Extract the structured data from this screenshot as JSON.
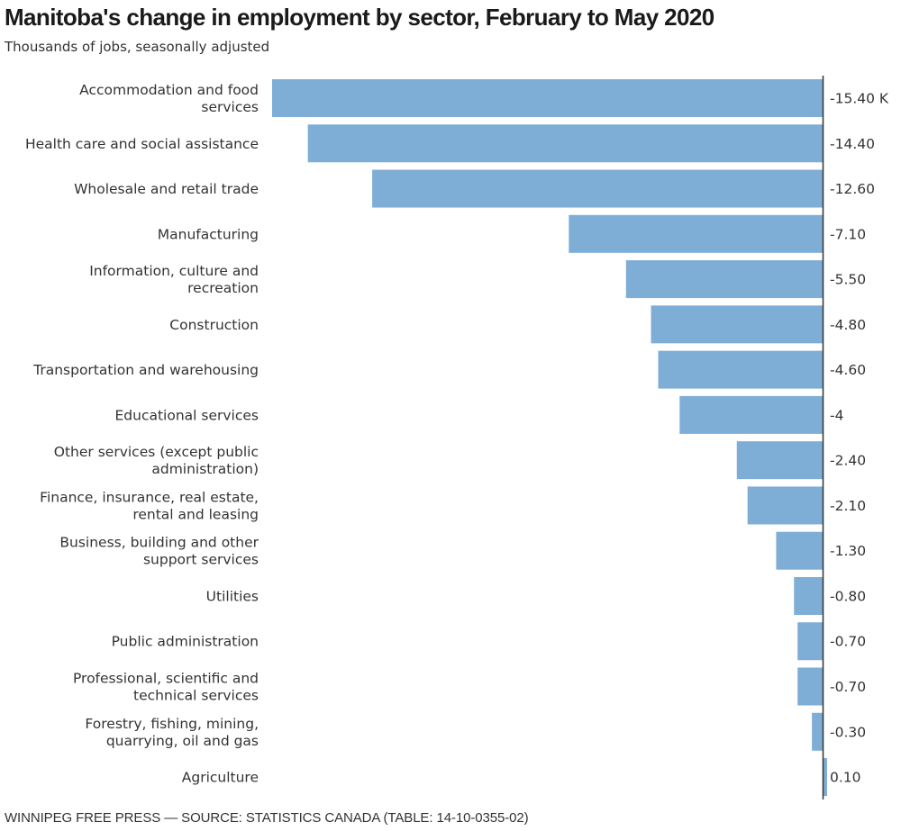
{
  "chart_data": {
    "type": "bar",
    "orientation": "horizontal",
    "title": "Manitoba's change in employment by sector, February to May 2020",
    "subtitle": "Thousands of jobs, seasonally adjusted",
    "xlabel": "",
    "ylabel": "",
    "unit_suffix_first_label": " K",
    "xlim": [
      -15.4,
      0.1
    ],
    "grid": false,
    "legend": "none",
    "bar_color": "#7eadd6",
    "axis_color": "#333333",
    "categories": [
      [
        "Accommodation and food",
        "services"
      ],
      [
        "Health care and social assistance"
      ],
      [
        "Wholesale and retail trade"
      ],
      [
        "Manufacturing"
      ],
      [
        "Information, culture and",
        "recreation"
      ],
      [
        "Construction"
      ],
      [
        "Transportation and warehousing"
      ],
      [
        "Educational services"
      ],
      [
        "Other services (except public",
        "administration)"
      ],
      [
        "Finance, insurance, real estate,",
        "rental and leasing"
      ],
      [
        "Business, building and other",
        "support services"
      ],
      [
        "Utilities"
      ],
      [
        "Public administration"
      ],
      [
        "Professional, scientific and",
        "technical services"
      ],
      [
        "Forestry, fishing, mining,",
        "quarrying, oil and gas"
      ],
      [
        "Agriculture"
      ]
    ],
    "values": [
      -15.4,
      -14.4,
      -12.6,
      -7.1,
      -5.5,
      -4.8,
      -4.6,
      -4,
      -2.4,
      -2.1,
      -1.3,
      -0.8,
      -0.7,
      -0.7,
      -0.3,
      0.1
    ],
    "value_labels": [
      "-15.40 K",
      "-14.40",
      "-12.60",
      "-7.10",
      "-5.50",
      "-4.80",
      "-4.60",
      "-4",
      "-2.40",
      "-2.10",
      "-1.30",
      "-0.80",
      "-0.70",
      "-0.70",
      "-0.30",
      "0.10"
    ]
  },
  "footer": {
    "source": "WINNIPEG FREE PRESS — SOURCE: STATISTICS CANADA (TABLE: 14-10-0355-02)"
  }
}
